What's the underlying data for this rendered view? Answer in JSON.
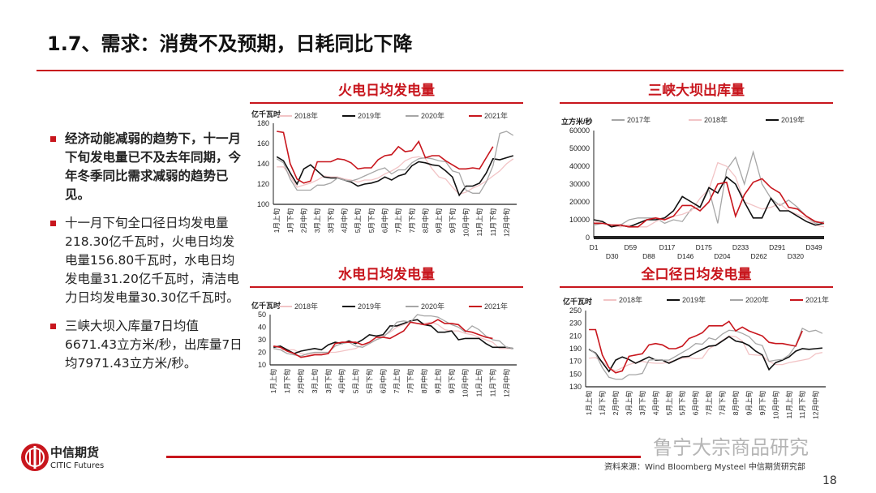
{
  "title": "1.7、需求：消费不及预期，日耗同比下降",
  "bullets": [
    "经济动能减弱的趋势下，十一月下旬发电量已不及去年同期，今年冬季同比需求减弱的趋势已见。",
    "十一月下旬全口径日均发电量218.30亿千瓦时，火电日均发电量156.80千瓦时，水电日均发电量31.20亿千瓦时，清洁电力日均发电量30.30亿千瓦时。",
    "三峡大坝入库量7日均值6671.43立方米/秒，出库量7日均7971.43立方米/秒。"
  ],
  "footer": {
    "logo_cn": "中信期货",
    "logo_en": "CITIC Futures",
    "source": "资料来源：Wind Bloomberg Mysteel 中信期货研究部",
    "page": "18",
    "watermark": "鲁宁大宗商品研究"
  },
  "colors": {
    "accent": "#c8161d",
    "s2018": "#f2c4c6",
    "s2019": "#111111",
    "s2020": "#a6a6a6",
    "s2021": "#c8161d",
    "s2017": "#d9cbb5"
  },
  "chart_data": [
    {
      "id": "thermal",
      "type": "line",
      "title": "火电日均发电量",
      "ylabel": "亿千瓦时",
      "ylim": [
        100,
        180
      ],
      "yticks": [
        100,
        120,
        140,
        160,
        180
      ],
      "xtick_labels": [
        "1月上旬",
        "1月下旬",
        "2月中旬",
        "3月上旬",
        "3月下旬",
        "4月中旬",
        "5月上旬",
        "5月下旬",
        "6月中旬",
        "7月上旬",
        "7月下旬",
        "8月中旬",
        "9月上旬",
        "9月下旬",
        "10月中旬",
        "11月上旬",
        "11月下旬",
        "12月中旬"
      ],
      "n_points": 36,
      "legend": "top",
      "series": [
        {
          "name": "2018年",
          "color": "#f2c4c6",
          "values": [
            137,
            137,
            128,
            117,
            119,
            121,
            124,
            128,
            127,
            127,
            125,
            124,
            122,
            124,
            124,
            126,
            130,
            133,
            137,
            143,
            146,
            147,
            145,
            135,
            127,
            125,
            117,
            110,
            112,
            116,
            119,
            123,
            128,
            133,
            140,
            145
          ]
        },
        {
          "name": "2019年",
          "color": "#111111",
          "values": [
            147,
            143,
            131,
            120,
            135,
            139,
            133,
            127,
            126,
            126,
            124,
            122,
            118,
            120,
            121,
            123,
            127,
            124,
            128,
            130,
            138,
            142,
            141,
            139,
            138,
            133,
            127,
            109,
            118,
            118,
            121,
            131,
            145,
            144,
            146,
            148
          ]
        },
        {
          "name": "2020年",
          "color": "#a6a6a6",
          "values": [
            145,
            141,
            125,
            114,
            114,
            114,
            119,
            119,
            121,
            126,
            124,
            123,
            125,
            128,
            131,
            134,
            136,
            130,
            134,
            134,
            141,
            145,
            146,
            145,
            143,
            142,
            133,
            131,
            114,
            111,
            111,
            122,
            138,
            170,
            172,
            168
          ]
        },
        {
          "name": "2021年",
          "color": "#c8161d",
          "values": [
            172,
            171,
            140,
            125,
            121,
            123,
            142,
            142,
            142,
            145,
            144,
            141,
            135,
            136,
            136,
            144,
            148,
            149,
            157,
            152,
            153,
            162,
            146,
            148,
            148,
            143,
            139,
            135,
            135,
            136,
            135,
            146,
            157
          ]
        }
      ]
    },
    {
      "id": "three-gorges",
      "type": "line",
      "title": "三峡大坝出库量",
      "ylabel": "立方米/秒",
      "ylim": [
        0,
        60000
      ],
      "yticks": [
        0,
        10000,
        20000,
        30000,
        40000,
        50000,
        60000
      ],
      "xtick_labels": [
        "D1",
        "D30",
        "D59",
        "D88",
        "D117",
        "D146",
        "D175",
        "D204",
        "D233",
        "D262",
        "D291",
        "D320",
        "D349"
      ],
      "xrange": [
        1,
        365
      ],
      "x": [
        1,
        15,
        29,
        43,
        57,
        71,
        85,
        99,
        113,
        127,
        141,
        155,
        169,
        183,
        197,
        211,
        225,
        239,
        253,
        267,
        281,
        295,
        309,
        323,
        337,
        351,
        365
      ],
      "legend": "top",
      "series": [
        {
          "name": "2017年",
          "color": "#a6a6a6",
          "values": [
            7000,
            8000,
            7000,
            7000,
            10000,
            11000,
            11000,
            11000,
            8000,
            10000,
            9000,
            16000,
            17000,
            27000,
            8000,
            38000,
            45000,
            30000,
            48000,
            30000,
            22000,
            18000,
            21000,
            17000,
            12000,
            8000,
            9000
          ]
        },
        {
          "name": "2018年",
          "color": "#f2c4c6",
          "values": [
            9000,
            8000,
            7000,
            6000,
            7000,
            6000,
            6000,
            9000,
            11000,
            12000,
            13000,
            15000,
            22000,
            27000,
            42000,
            40000,
            34000,
            20000,
            18000,
            16000,
            17000,
            19000,
            15000,
            13000,
            11000,
            7000,
            6000
          ]
        },
        {
          "name": "2019年",
          "color": "#111111",
          "values": [
            10000,
            9000,
            6000,
            7000,
            6000,
            8000,
            10000,
            10000,
            11000,
            15000,
            23000,
            20000,
            17000,
            28000,
            25000,
            34000,
            30000,
            20000,
            11000,
            11000,
            22000,
            15000,
            15000,
            12000,
            9000,
            7000,
            8000
          ]
        },
        {
          "name": "",
          "color": "#c8161d",
          "values": [
            8000,
            8000,
            7000,
            7000,
            6000,
            6000,
            10000,
            11000,
            10000,
            12000,
            18000,
            18000,
            15000,
            20000,
            30000,
            31000,
            12000,
            24000,
            31000,
            33000,
            28000,
            25000,
            17000,
            16000,
            12000,
            9000,
            8000
          ]
        }
      ]
    },
    {
      "id": "hydro",
      "type": "line",
      "title": "水电日均发电量",
      "ylabel": "亿千瓦时",
      "ylim": [
        10,
        50
      ],
      "yticks": [
        10,
        20,
        30,
        40,
        50
      ],
      "xtick_labels": [
        "1月上旬",
        "1月下旬",
        "2月中旬",
        "3月上旬",
        "3月下旬",
        "4月中旬",
        "5月上旬",
        "5月下旬",
        "6月中旬",
        "7月上旬",
        "7月下旬",
        "8月中旬",
        "9月上旬",
        "9月下旬",
        "10月中旬",
        "11月上旬",
        "11月下旬",
        "12月中旬"
      ],
      "n_points": 36,
      "legend": "top",
      "series": [
        {
          "name": "2018年",
          "color": "#f2c4c6",
          "values": [
            23,
            22,
            22,
            22,
            19,
            18,
            19,
            19,
            20,
            20,
            21,
            22,
            23,
            26,
            27,
            30,
            33,
            36,
            40,
            42,
            44,
            43,
            43,
            44,
            42,
            38,
            37,
            37,
            35,
            34,
            32,
            30,
            28,
            23,
            23,
            23
          ]
        },
        {
          "name": "2019年",
          "color": "#111111",
          "values": [
            24,
            25,
            22,
            19,
            21,
            22,
            23,
            22,
            26,
            28,
            27,
            29,
            27,
            30,
            34,
            33,
            34,
            41,
            41,
            43,
            45,
            46,
            42,
            41,
            36,
            36,
            37,
            30,
            31,
            31,
            31,
            27,
            24,
            24,
            24,
            23
          ]
        },
        {
          "name": "2020年",
          "color": "#a6a6a6",
          "values": [
            23,
            22,
            19,
            18,
            17,
            19,
            20,
            20,
            20,
            25,
            27,
            28,
            25,
            24,
            27,
            30,
            32,
            37,
            44,
            45,
            44,
            50,
            49,
            49,
            48,
            45,
            42,
            40,
            36,
            41,
            38,
            33,
            30,
            29,
            24,
            23
          ]
        },
        {
          "name": "2021年",
          "color": "#c8161d",
          "values": [
            25,
            24,
            21,
            19,
            16,
            17,
            18,
            18,
            19,
            27,
            28,
            28,
            28,
            26,
            28,
            32,
            32,
            31,
            34,
            37,
            44,
            43,
            42,
            43,
            46,
            43,
            43,
            42,
            37,
            36,
            34,
            32,
            31
          ]
        }
      ]
    },
    {
      "id": "total",
      "type": "line",
      "title": "全口径日均发电量",
      "ylabel": "亿千瓦时",
      "ylim": [
        130,
        250
      ],
      "yticks": [
        130,
        150,
        170,
        190,
        210,
        230,
        250
      ],
      "xtick_labels": [
        "1月上旬",
        "1月下旬",
        "2月中旬",
        "3月上旬",
        "3月下旬",
        "4月中旬",
        "5月上旬",
        "5月下旬",
        "6月中旬",
        "7月上旬",
        "7月下旬",
        "8月中旬",
        "9月上旬",
        "9月下旬",
        "10月中旬",
        "11月上旬",
        "11月下旬",
        "12月中旬"
      ],
      "n_points": 36,
      "legend": "top",
      "series": [
        {
          "name": "2018年",
          "color": "#f2c4c6",
          "values": [
            175,
            176,
            170,
            160,
            155,
            160,
            165,
            168,
            170,
            168,
            167,
            167,
            169,
            172,
            175,
            176,
            174,
            175,
            190,
            196,
            203,
            210,
            209,
            202,
            181,
            180,
            179,
            170,
            165,
            165,
            168,
            170,
            172,
            174,
            182,
            184
          ]
        },
        {
          "name": "2019年",
          "color": "#111111",
          "values": [
            189,
            183,
            168,
            154,
            172,
            177,
            173,
            167,
            172,
            177,
            172,
            172,
            167,
            172,
            177,
            178,
            184,
            189,
            194,
            195,
            202,
            209,
            202,
            200,
            195,
            186,
            180,
            157,
            168,
            172,
            177,
            186,
            190,
            189,
            190,
            191
          ]
        },
        {
          "name": "2020年",
          "color": "#a6a6a6",
          "values": [
            190,
            182,
            160,
            145,
            142,
            142,
            149,
            149,
            151,
            172,
            173,
            172,
            172,
            178,
            184,
            190,
            198,
            197,
            207,
            204,
            213,
            219,
            218,
            214,
            209,
            198,
            195,
            170,
            172,
            173,
            180,
            195,
            222,
            217,
            219,
            214
          ]
        },
        {
          "name": "2021年",
          "color": "#c8161d",
          "values": [
            220,
            220,
            180,
            160,
            152,
            155,
            178,
            180,
            182,
            196,
            198,
            196,
            190,
            190,
            194,
            206,
            210,
            215,
            226,
            226,
            226,
            233,
            218,
            224,
            218,
            214,
            210,
            200,
            198,
            198,
            196,
            194,
            218
          ]
        }
      ]
    }
  ]
}
